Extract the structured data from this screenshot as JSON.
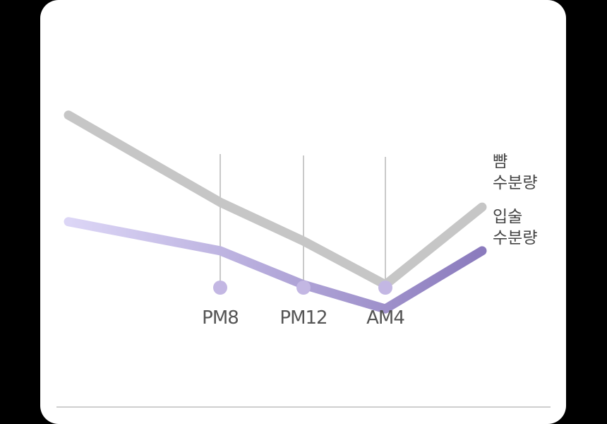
{
  "chart_data": {
    "type": "line",
    "categories": [
      "",
      "PM8",
      "PM12",
      "AM4",
      ""
    ],
    "series": [
      {
        "name": [
          "뺨",
          "수분량"
        ],
        "values": [
          75,
          57,
          49,
          40,
          56
        ],
        "color": "#c6c6c6"
      },
      {
        "name": [
          "입술",
          "수분량"
        ],
        "values": [
          53,
          47,
          40,
          35,
          47
        ],
        "color_start": "#dcd6f6",
        "color_end": "#8b7bbd"
      }
    ],
    "ylim": [
      20,
      90
    ],
    "grid": false,
    "legend": "right",
    "marker_color": "#c3b7e3",
    "guide_color": "#c9c9c9"
  }
}
